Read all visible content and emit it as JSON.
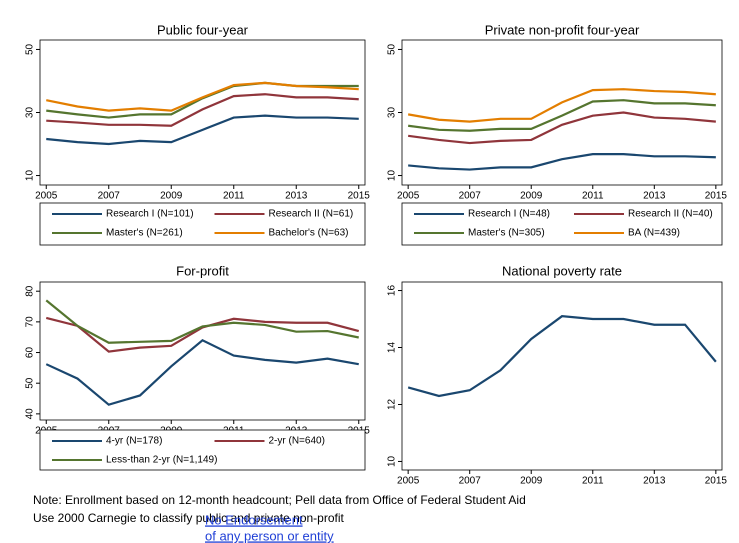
{
  "chart_data": [
    {
      "type": "line",
      "title": "Public four-year",
      "x": [
        2005,
        2006,
        2007,
        2008,
        2009,
        2010,
        2011,
        2012,
        2013,
        2014,
        2015
      ],
      "xlim": [
        2004.8,
        2015.2
      ],
      "xticks": [
        2005,
        2007,
        2009,
        2011,
        2013,
        2015
      ],
      "ylim": [
        7,
        53
      ],
      "yticks": [
        10,
        30,
        50
      ],
      "series": [
        {
          "name": "Research I (N=101)",
          "color": "#1a476f",
          "values": [
            21.6,
            20.6,
            20,
            21,
            20.6,
            24.5,
            28.4,
            29,
            28.4,
            28.4,
            28
          ]
        },
        {
          "name": "Research II (N=61)",
          "color": "#90353b",
          "values": [
            27.4,
            26.8,
            26.1,
            26.1,
            25.8,
            31,
            35.2,
            35.8,
            34.8,
            34.8,
            34.2
          ]
        },
        {
          "name": "Master's (N=261)",
          "color": "#55752f",
          "values": [
            30.6,
            29.4,
            28.4,
            29.4,
            29.4,
            34.5,
            38.4,
            39.4,
            38.4,
            38.4,
            38.4
          ]
        },
        {
          "name": "Bachelor's (N=63)",
          "color": "#e37e00",
          "values": [
            33.9,
            31.9,
            30.6,
            31.3,
            30.6,
            34.8,
            38.7,
            39.4,
            38.4,
            38,
            37.4
          ]
        }
      ]
    },
    {
      "type": "line",
      "title": "Private non-profit four-year",
      "x": [
        2005,
        2006,
        2007,
        2008,
        2009,
        2010,
        2011,
        2012,
        2013,
        2014,
        2015
      ],
      "xlim": [
        2004.8,
        2015.2
      ],
      "xticks": [
        2005,
        2007,
        2009,
        2011,
        2013,
        2015
      ],
      "ylim": [
        7,
        53
      ],
      "yticks": [
        10,
        30,
        50
      ],
      "series": [
        {
          "name": "Research I (N=48)",
          "color": "#1a476f",
          "values": [
            13.2,
            12.3,
            11.9,
            12.6,
            12.6,
            15.2,
            16.8,
            16.8,
            16.1,
            16.1,
            15.8
          ]
        },
        {
          "name": "Research II (N=40)",
          "color": "#90353b",
          "values": [
            22.6,
            21.3,
            20.3,
            21,
            21.3,
            26.1,
            29,
            30,
            28.4,
            28,
            27.1
          ]
        },
        {
          "name": "Master's (N=305)",
          "color": "#55752f",
          "values": [
            25.8,
            24.5,
            24.2,
            24.8,
            24.8,
            29,
            33.5,
            33.9,
            32.9,
            32.9,
            32.3
          ]
        },
        {
          "name": "BA (N=439)",
          "color": "#e37e00",
          "values": [
            29.4,
            27.7,
            27.1,
            28,
            28,
            33.2,
            37.1,
            37.4,
            36.8,
            36.5,
            35.8
          ]
        }
      ]
    },
    {
      "type": "line",
      "title": "For-profit",
      "x": [
        2005,
        2006,
        2007,
        2008,
        2009,
        2010,
        2011,
        2012,
        2013,
        2014,
        2015
      ],
      "xlim": [
        2004.8,
        2015.2
      ],
      "xticks": [
        2005,
        2007,
        2009,
        2011,
        2013,
        2015
      ],
      "ylim": [
        38,
        83
      ],
      "yticks": [
        40,
        50,
        60,
        70,
        80
      ],
      "series": [
        {
          "name": "4-yr (N=178)",
          "color": "#1a476f",
          "values": [
            56.2,
            51.5,
            43,
            46,
            55.5,
            64,
            59,
            57.6,
            56.7,
            58,
            56.2
          ]
        },
        {
          "name": "2-yr (N=640)",
          "color": "#90353b",
          "values": [
            71.3,
            68.7,
            60.3,
            61.6,
            62.2,
            68.2,
            71,
            70,
            69.7,
            69.7,
            67
          ]
        },
        {
          "name": "Less-than 2-yr (N=1,149)",
          "color": "#55752f",
          "values": [
            77,
            68.7,
            63.2,
            63.5,
            63.8,
            68.5,
            69.7,
            69,
            66.8,
            67,
            64.9
          ]
        }
      ]
    },
    {
      "type": "line",
      "title": "National poverty rate",
      "x": [
        2005,
        2006,
        2007,
        2008,
        2009,
        2010,
        2011,
        2012,
        2013,
        2014,
        2015
      ],
      "xlim": [
        2004.8,
        2015.2
      ],
      "xticks": [
        2005,
        2007,
        2009,
        2011,
        2013,
        2015
      ],
      "ylim": [
        9.7,
        16.3
      ],
      "yticks": [
        10,
        12,
        14,
        16
      ],
      "series": [
        {
          "color": "#1a476f",
          "values": [
            12.6,
            12.3,
            12.5,
            13.2,
            14.3,
            15.1,
            15,
            15,
            14.8,
            14.8,
            13.5
          ]
        }
      ]
    }
  ],
  "notes": [
    "Note: Enrollment based on 12-month headcount; Pell data from Office of Federal Student Aid",
    "Use 2000 Carnegie to classify public and private non-profit"
  ],
  "link": [
    "No Endorsement",
    "of any person or entity"
  ]
}
